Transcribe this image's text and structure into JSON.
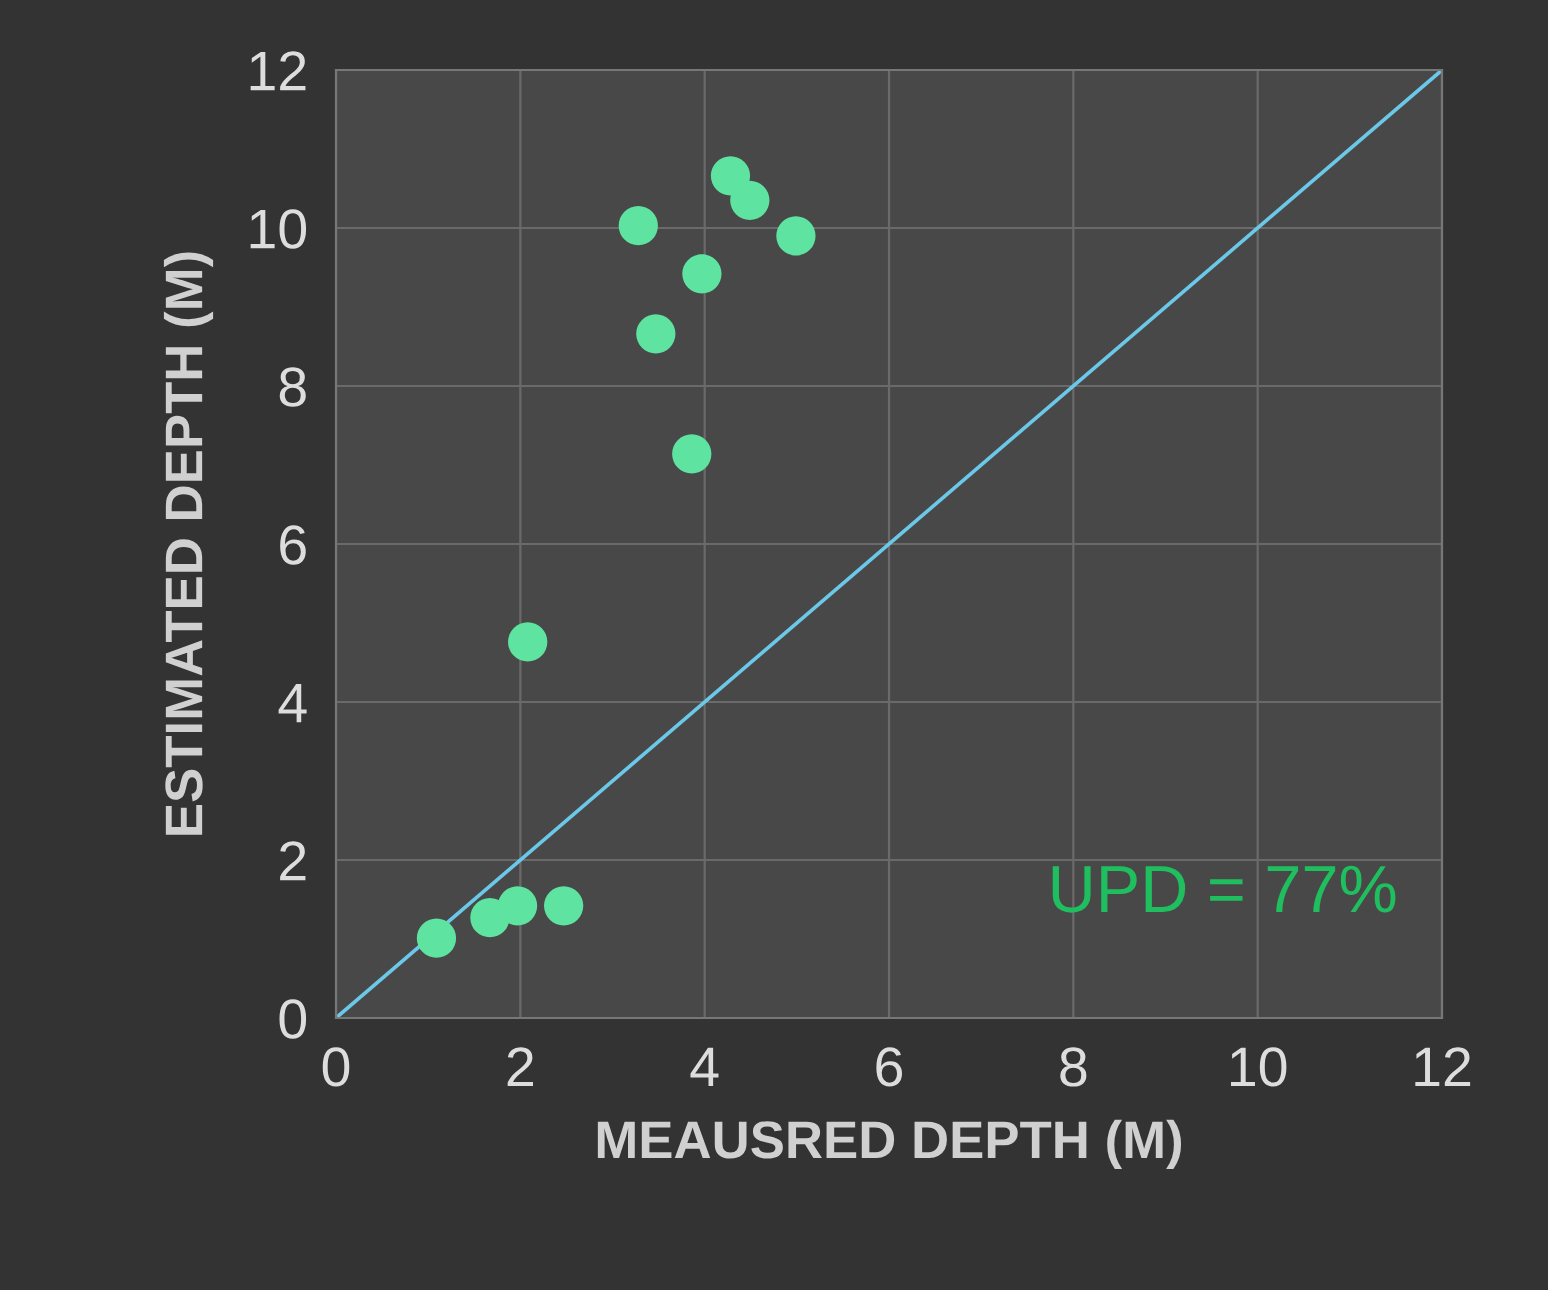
{
  "chart_data": {
    "type": "scatter",
    "xlabel": "MEAUSRED DEPTH (M)",
    "ylabel": "ESTIMATED DEPTH (M)",
    "xlim": [
      0,
      12
    ],
    "ylim": [
      0,
      12
    ],
    "xticks": [
      0,
      2,
      4,
      6,
      8,
      10,
      12
    ],
    "yticks": [
      0,
      2,
      4,
      6,
      8,
      10,
      12
    ],
    "grid": true,
    "series": [
      {
        "marker": "circle",
        "color": "#5ee3a1",
        "x": [
          1.09,
          1.67,
          1.97,
          2.47,
          2.08,
          3.28,
          3.47,
          3.86,
          3.97,
          4.28,
          4.49,
          4.99
        ],
        "values": [
          1.01,
          1.27,
          1.42,
          1.42,
          4.76,
          10.03,
          8.66,
          7.14,
          9.42,
          10.66,
          10.35,
          9.9
        ]
      },
      {
        "type": "line",
        "color": "#6cc8e8",
        "x": [
          0,
          12
        ],
        "values": [
          0,
          12
        ]
      }
    ],
    "annotations": [
      "UPD = 77%"
    ]
  }
}
